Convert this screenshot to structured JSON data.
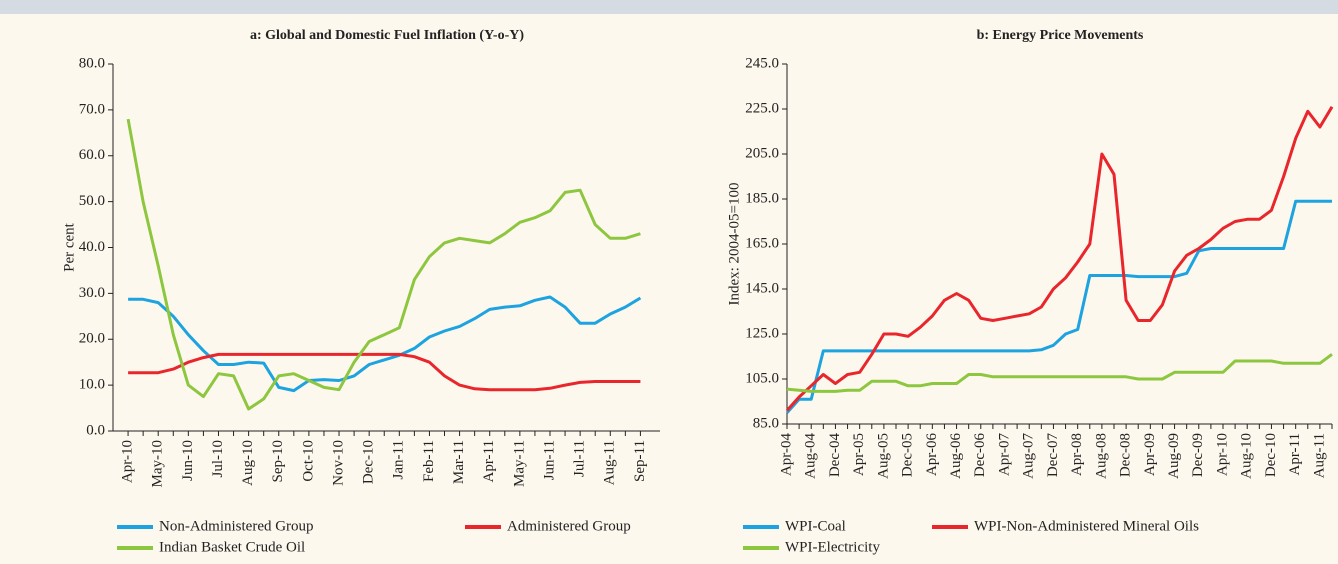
{
  "chart_data": [
    {
      "type": "line",
      "title": "a: Global and Domestic Fuel Inflation (Y-o-Y)",
      "ylabel": "Per cent",
      "categories": [
        "Apr-10",
        null,
        "May-10",
        null,
        "Jun-10",
        null,
        "Jul-10",
        null,
        "Aug-10",
        null,
        "Sep-10",
        null,
        "Oct-10",
        null,
        "Nov-10",
        null,
        "Dec-10",
        null,
        "Jan-11",
        null,
        "Feb-11",
        null,
        "Mar-11",
        null,
        "Apr-11",
        null,
        "May-11",
        null,
        "Jun-11",
        null,
        "Jul-11",
        null,
        "Aug-11",
        null,
        "Sep-11"
      ],
      "ylim": [
        0,
        80
      ],
      "yticks": [
        {
          "value": 0,
          "label": "0.0"
        },
        {
          "value": 10,
          "label": "10.0"
        },
        {
          "value": 20,
          "label": "20.0"
        },
        {
          "value": 30,
          "label": "30.0"
        },
        {
          "value": 40,
          "label": "40.0"
        },
        {
          "value": 50,
          "label": "50.0"
        },
        {
          "value": 60,
          "label": "60.0"
        },
        {
          "value": 70,
          "label": "70.0"
        },
        {
          "value": 80,
          "label": "80.0"
        }
      ],
      "series": [
        {
          "name": "Non-Administered Group",
          "color": "#1ca3e0",
          "values": [
            28.7,
            28.7,
            28,
            25,
            21,
            17.5,
            14.5,
            14.5,
            15,
            14.8,
            9.5,
            8.8,
            11,
            11.2,
            11,
            12,
            14.5,
            15.5,
            16.5,
            18,
            20.5,
            21.8,
            22.8,
            24.5,
            26.5,
            27,
            27.3,
            28.5,
            29.2,
            27,
            23.5,
            23.5,
            25.5,
            27,
            29
          ]
        },
        {
          "name": "Administered Group",
          "color": "#e8262c",
          "values": [
            12.7,
            12.7,
            12.7,
            13.5,
            15,
            16,
            16.7,
            16.7,
            16.7,
            16.7,
            16.7,
            16.7,
            16.7,
            16.7,
            16.7,
            16.7,
            16.7,
            16.7,
            16.7,
            16.2,
            15,
            12,
            10,
            9.2,
            9,
            9,
            9,
            9,
            9.3,
            10,
            10.6,
            10.8,
            10.8,
            10.8,
            10.8
          ]
        },
        {
          "name": "Indian Basket Crude Oil",
          "color": "#8dc63f",
          "values": [
            68,
            50,
            36,
            21,
            10,
            7.5,
            12.5,
            12,
            4.8,
            7,
            12,
            12.5,
            11,
            9.5,
            9,
            15,
            19.5,
            21,
            22.5,
            33,
            38,
            41,
            42,
            41.5,
            41,
            43,
            45.5,
            46.5,
            48,
            52,
            52.5,
            45,
            42,
            42,
            43
          ]
        }
      ]
    },
    {
      "type": "line",
      "title": "b: Energy Price Movements",
      "ylabel": "Index: 2004-05=100",
      "categories": [
        "Apr-04",
        null,
        "Aug-04",
        null,
        "Dec-04",
        null,
        "Apr-05",
        null,
        "Aug-05",
        null,
        "Dec-05",
        null,
        "Apr-06",
        null,
        "Aug-06",
        null,
        "Dec-06",
        null,
        "Apr-07",
        null,
        "Aug-07",
        null,
        "Dec-07",
        null,
        "Apr-08",
        null,
        "Aug-08",
        null,
        "Dec-08",
        null,
        "Apr-09",
        null,
        "Aug-09",
        null,
        "Dec-09",
        null,
        "Apr-10",
        null,
        "Aug-10",
        null,
        "Dec-10",
        null,
        "Apr-11",
        null,
        "Aug-11",
        null
      ],
      "ylim": [
        85,
        245
      ],
      "yticks": [
        {
          "value": 85,
          "label": "85.0"
        },
        {
          "value": 105,
          "label": "105.0"
        },
        {
          "value": 125,
          "label": "125.0"
        },
        {
          "value": 145,
          "label": "145.0"
        },
        {
          "value": 165,
          "label": "165.0"
        },
        {
          "value": 185,
          "label": "185.0"
        },
        {
          "value": 205,
          "label": "205.0"
        },
        {
          "value": 225,
          "label": "225.0"
        },
        {
          "value": 245,
          "label": "245.0"
        }
      ],
      "series": [
        {
          "name": "WPI-Coal",
          "color": "#1ca3e0",
          "values": [
            90,
            96,
            96,
            117.5,
            117.5,
            117.5,
            117.5,
            117.5,
            117.5,
            117.5,
            117.5,
            117.5,
            117.5,
            117.5,
            117.5,
            117.5,
            117.5,
            117.5,
            117.5,
            117.5,
            117.5,
            118,
            120,
            125,
            127,
            151,
            151,
            151,
            151,
            150.5,
            150.5,
            150.5,
            150.5,
            152,
            162,
            163,
            163,
            163,
            163,
            163,
            163,
            163,
            184,
            184,
            184,
            184
          ]
        },
        {
          "name": "WPI-Non-Administered Mineral Oils",
          "color": "#e8262c",
          "values": [
            91,
            97,
            102,
            107,
            103,
            107,
            108,
            116,
            125,
            125,
            124,
            128,
            133,
            140,
            143,
            140,
            132,
            131,
            132,
            133,
            134,
            137,
            145,
            150,
            157,
            165,
            205,
            196,
            140,
            131,
            131,
            138,
            153,
            160,
            163,
            167,
            172,
            175,
            176,
            176,
            180,
            195,
            212,
            224,
            217,
            226
          ]
        },
        {
          "name": "WPI-Electricity",
          "color": "#8dc63f",
          "values": [
            100.5,
            100,
            99.5,
            99.5,
            99.5,
            100,
            100,
            104,
            104,
            104,
            102,
            102,
            103,
            103,
            103,
            107,
            107,
            106,
            106,
            106,
            106,
            106,
            106,
            106,
            106,
            106,
            106,
            106,
            106,
            105,
            105,
            105,
            108,
            108,
            108,
            108,
            108,
            113,
            113,
            113,
            113,
            112,
            112,
            112,
            112,
            116
          ]
        }
      ]
    }
  ]
}
